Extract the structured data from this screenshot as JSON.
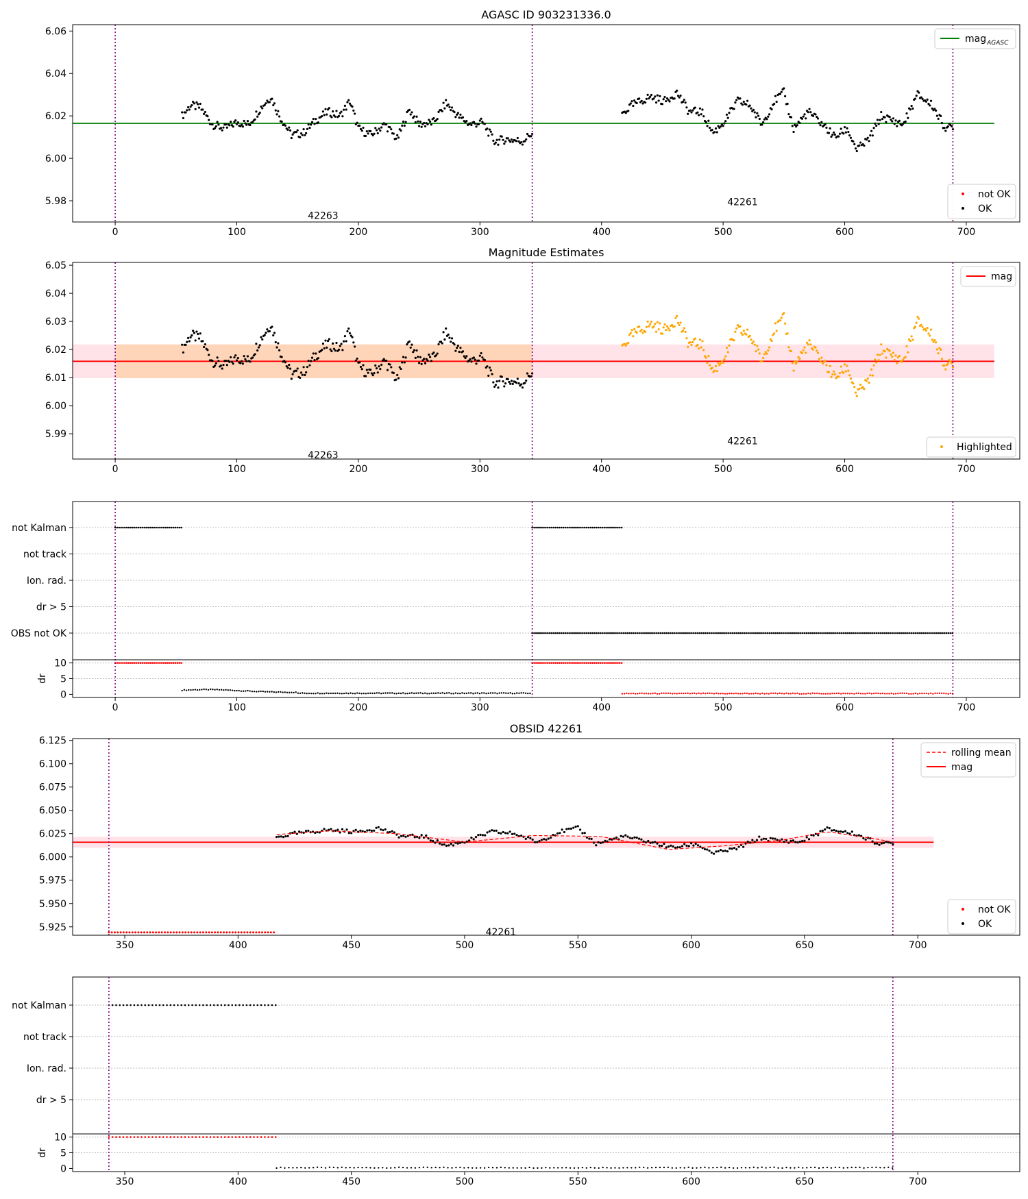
{
  "chart_data": [
    {
      "type": "scatter",
      "title": "AGASC ID 903231336.0",
      "xlim": [
        -35,
        744
      ],
      "ylim": [
        5.97,
        6.063
      ],
      "yticks": [
        "5.98",
        "6.00",
        "6.02",
        "6.04",
        "6.06"
      ],
      "xticks": [
        "0",
        "100",
        "200",
        "300",
        "400",
        "500",
        "600",
        "700"
      ],
      "vlines": [
        0,
        343,
        689
      ],
      "hline": {
        "y": 6.0165,
        "x0": -35,
        "x1": 723,
        "color": "#008000"
      },
      "obsids": [
        {
          "label": "42263",
          "x": 171,
          "y": 5.973
        },
        {
          "label": "42261",
          "x": 516,
          "y": 5.9795
        }
      ],
      "series_ok": {
        "name": "OK",
        "seg1": {
          "x0": 55,
          "x1": 343,
          "kp": [
            [
              55,
              6.02
            ],
            [
              62,
              6.025
            ],
            [
              70,
              6.024
            ],
            [
              80,
              6.016
            ],
            [
              90,
              6.014
            ],
            [
              100,
              6.017
            ],
            [
              110,
              6.016
            ],
            [
              120,
              6.024
            ],
            [
              128,
              6.029
            ],
            [
              135,
              6.02
            ],
            [
              145,
              6.011
            ],
            [
              155,
              6.012
            ],
            [
              165,
              6.018
            ],
            [
              175,
              6.022
            ],
            [
              185,
              6.02
            ],
            [
              193,
              6.027
            ],
            [
              200,
              6.014
            ],
            [
              210,
              6.011
            ],
            [
              222,
              6.016
            ],
            [
              232,
              6.009
            ],
            [
              242,
              6.023
            ],
            [
              250,
              6.016
            ],
            [
              262,
              6.017
            ],
            [
              272,
              6.026
            ],
            [
              282,
              6.02
            ],
            [
              292,
              6.016
            ],
            [
              302,
              6.017
            ],
            [
              312,
              6.008
            ],
            [
              322,
              6.009
            ],
            [
              335,
              6.008
            ],
            [
              343,
              6.012
            ]
          ]
        },
        "seg2": {
          "x0": 417,
          "x1": 689,
          "kp": [
            [
              417,
              6.021
            ],
            [
              425,
              6.025
            ],
            [
              440,
              6.029
            ],
            [
              452,
              6.027
            ],
            [
              462,
              6.031
            ],
            [
              472,
              6.022
            ],
            [
              482,
              6.022
            ],
            [
              492,
              6.012
            ],
            [
              502,
              6.018
            ],
            [
              512,
              6.027
            ],
            [
              522,
              6.025
            ],
            [
              532,
              6.016
            ],
            [
              542,
              6.027
            ],
            [
              550,
              6.031
            ],
            [
              558,
              6.014
            ],
            [
              570,
              6.022
            ],
            [
              580,
              6.017
            ],
            [
              592,
              6.01
            ],
            [
              602,
              6.014
            ],
            [
              610,
              6.004
            ],
            [
              620,
              6.009
            ],
            [
              630,
              6.02
            ],
            [
              638,
              6.018
            ],
            [
              648,
              6.016
            ],
            [
              660,
              6.03
            ],
            [
              672,
              6.025
            ],
            [
              682,
              6.015
            ],
            [
              689,
              6.014
            ]
          ]
        }
      },
      "legend_top": [
        {
          "label": "mag",
          "subscript": "AGASC",
          "style": "line",
          "color": "#008000"
        }
      ],
      "legend_bottom": [
        {
          "label": "not OK",
          "color": "#ff0000"
        },
        {
          "label": "OK",
          "color": "#000000"
        }
      ]
    },
    {
      "type": "scatter",
      "title": "Magnitude Estimates",
      "xlim": [
        -35,
        744
      ],
      "ylim": [
        5.981,
        6.051
      ],
      "yticks": [
        "5.99",
        "6.00",
        "6.01",
        "6.02",
        "6.03",
        "6.04",
        "6.05"
      ],
      "xticks": [
        "0",
        "100",
        "200",
        "300",
        "400",
        "500",
        "600",
        "700"
      ],
      "vlines": [
        0,
        343,
        689
      ],
      "hline": {
        "y": 6.0158,
        "x0": -35,
        "x1": 723,
        "color": "#ff0000"
      },
      "band_all": {
        "y0": 6.0098,
        "y1": 6.0218,
        "x0": -35,
        "x1": 723,
        "color": "#ffc0cb"
      },
      "band_obs": {
        "y0": 6.0098,
        "y1": 6.0218,
        "x0": 0,
        "x1": 343,
        "color": "#ffcc99"
      },
      "obsids": [
        {
          "label": "42263",
          "x": 171,
          "y": 5.9825
        },
        {
          "label": "42261",
          "x": 516,
          "y": 5.9875
        }
      ],
      "series_ok": {
        "name": "OK",
        "x0": 55,
        "x1": 343
      },
      "series_highlight": {
        "name": "Highlighted",
        "x0": 417,
        "x1": 689,
        "color": "#ffa500"
      },
      "legend_top": [
        {
          "label": "mag",
          "style": "line",
          "color": "#ff0000"
        }
      ],
      "legend_bottom": [
        {
          "label": "Highlighted",
          "color": "#ffa500"
        }
      ]
    },
    {
      "type": "scatter",
      "title": "",
      "categories": [
        "not Kalman",
        "not track",
        "Ion. rad.",
        "dr > 5",
        "OBS not OK"
      ],
      "flags": [
        {
          "category": "not Kalman",
          "ranges": [
            [
              0,
              55
            ],
            [
              343,
              417
            ]
          ]
        },
        {
          "category": "OBS not OK",
          "ranges": [
            [
              343,
              689
            ]
          ]
        }
      ],
      "dr_panel": {
        "ylabel": "dr",
        "yticks": [
          "0",
          "5",
          "10"
        ],
        "ylim": [
          -1,
          11
        ],
        "clip_value": 10,
        "clip_ranges": [
          [
            0,
            55
          ],
          [
            343,
            417
          ]
        ],
        "dr_ranges": [
          {
            "x0": 55,
            "x1": 343,
            "color": "#000000"
          },
          {
            "x0": 417,
            "x1": 689,
            "color": "#ff0000"
          }
        ]
      },
      "xlim": [
        -35,
        744
      ],
      "xticks": [
        "0",
        "100",
        "200",
        "300",
        "400",
        "500",
        "600",
        "700"
      ],
      "vlines": [
        0,
        343,
        689
      ]
    },
    {
      "type": "scatter",
      "title": "OBSID 42261",
      "xlim": [
        327,
        745
      ],
      "ylim": [
        5.916,
        6.127
      ],
      "yticks": [
        "5.925",
        "5.950",
        "5.975",
        "6.000",
        "6.025",
        "6.050",
        "6.075",
        "6.100",
        "6.125"
      ],
      "xticks": [
        "350",
        "400",
        "450",
        "500",
        "550",
        "600",
        "650",
        "700"
      ],
      "vlines": [
        343,
        689
      ],
      "hline": {
        "y": 6.0158,
        "x0": 327,
        "x1": 707,
        "color": "#ff0000"
      },
      "band_all": {
        "y0": 6.0098,
        "y1": 6.0218,
        "x0": 327,
        "x1": 707,
        "color": "#ffc0cb"
      },
      "not_ok": {
        "x0": 343,
        "x1": 417,
        "y": 5.919
      },
      "rolling_mean": {
        "name": "rolling mean",
        "kp": [
          [
            417,
            6.024
          ],
          [
            440,
            6.028
          ],
          [
            470,
            6.025
          ],
          [
            500,
            6.016
          ],
          [
            530,
            6.023
          ],
          [
            560,
            6.022
          ],
          [
            590,
            6.008
          ],
          [
            615,
            6.012
          ],
          [
            640,
            6.018
          ],
          [
            660,
            6.027
          ],
          [
            680,
            6.02
          ],
          [
            689,
            6.016
          ]
        ]
      },
      "obsids": [
        {
          "label": "42261",
          "x": 516,
          "y": 5.9195
        }
      ],
      "legend_top": [
        {
          "label": "rolling mean",
          "style": "dash",
          "color": "#ff0000"
        },
        {
          "label": "mag",
          "style": "line",
          "color": "#ff0000"
        }
      ],
      "legend_bottom": [
        {
          "label": "not OK",
          "color": "#ff0000"
        },
        {
          "label": "OK",
          "color": "#000000"
        }
      ]
    },
    {
      "type": "scatter",
      "title": "",
      "categories": [
        "not Kalman",
        "not track",
        "Ion. rad.",
        "dr > 5"
      ],
      "flags": [
        {
          "category": "not Kalman",
          "ranges": [
            [
              343,
              417
            ]
          ]
        }
      ],
      "dr_panel": {
        "ylabel": "dr",
        "yticks": [
          "0",
          "5",
          "10"
        ],
        "ylim": [
          -1,
          11
        ],
        "clip_value": 10,
        "clip_ranges": [
          [
            343,
            417
          ]
        ],
        "dr_ranges": [
          {
            "x0": 417,
            "x1": 689,
            "color": "#000000"
          }
        ]
      },
      "xlim": [
        327,
        745
      ],
      "xticks": [
        "350",
        "400",
        "450",
        "500",
        "550",
        "600",
        "650",
        "700"
      ],
      "vlines": [
        343,
        689
      ]
    }
  ]
}
